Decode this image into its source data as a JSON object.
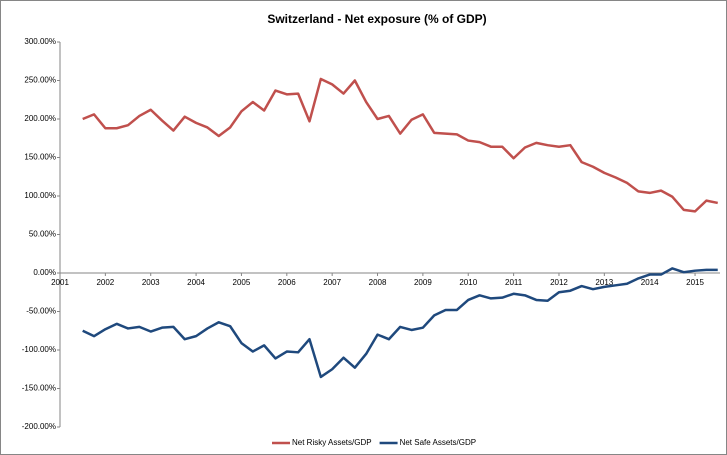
{
  "chart_data": {
    "type": "line",
    "title": "Switzerland - Net exposure (% of GDP)",
    "x": [
      2001.5,
      2001.75,
      2002,
      2002.25,
      2002.5,
      2002.75,
      2003,
      2003.25,
      2003.5,
      2003.75,
      2004,
      2004.25,
      2004.5,
      2004.75,
      2005,
      2005.25,
      2005.5,
      2005.75,
      2006,
      2006.25,
      2006.5,
      2006.75,
      2007,
      2007.25,
      2007.5,
      2007.75,
      2008,
      2008.25,
      2008.5,
      2008.75,
      2009,
      2009.25,
      2009.5,
      2009.75,
      2010,
      2010.25,
      2010.5,
      2010.75,
      2011,
      2011.25,
      2011.5,
      2011.75,
      2012,
      2012.25,
      2012.5,
      2012.75,
      2013,
      2013.25,
      2013.5,
      2013.75,
      2014,
      2014.25,
      2014.5,
      2014.75,
      2015,
      2015.25,
      2015.5
    ],
    "series": [
      {
        "name": "Net Risky Assets/GDP",
        "color": "#c0504d",
        "values": [
          200,
          206,
          188,
          188,
          192,
          204,
          212,
          198,
          185,
          203,
          195,
          189,
          178,
          189,
          210,
          222,
          211,
          237,
          232,
          233,
          197,
          252,
          245,
          233,
          250,
          222,
          200,
          204,
          181,
          199,
          206,
          182,
          181,
          180,
          172,
          170,
          164,
          164,
          149,
          163,
          169,
          166,
          164,
          166,
          144,
          138,
          130,
          124,
          117,
          106,
          104,
          107,
          99,
          82,
          80,
          94,
          91
        ]
      },
      {
        "name": "Net Safe Assets/GDP",
        "color": "#1f497d",
        "values": [
          -75,
          -82,
          -73,
          -66,
          -72,
          -70,
          -76,
          -71,
          -70,
          -86,
          -82,
          -72,
          -64,
          -69,
          -91,
          -102,
          -94,
          -111,
          -102,
          -103,
          -86,
          -135,
          -125,
          -110,
          -123,
          -105,
          -80,
          -86,
          -70,
          -74,
          -71,
          -55,
          -48,
          -48,
          -35,
          -29,
          -33,
          -32,
          -27,
          -29,
          -35,
          -36,
          -25,
          -23,
          -17,
          -21,
          -18,
          -16,
          -14,
          -7,
          -2,
          -2,
          6,
          1,
          3,
          4,
          4
        ]
      }
    ],
    "xlim": [
      2001,
      2015.55
    ],
    "xticks": [
      2001,
      2002,
      2003,
      2004,
      2005,
      2006,
      2007,
      2008,
      2009,
      2010,
      2011,
      2012,
      2013,
      2014,
      2015
    ],
    "ylim": [
      -200,
      300
    ],
    "yticks": [
      {
        "value": 300,
        "label": "300.00%"
      },
      {
        "value": 250,
        "label": "250.00%"
      },
      {
        "value": 200,
        "label": "200.00%"
      },
      {
        "value": 150,
        "label": "150.00%"
      },
      {
        "value": 100,
        "label": "100.00%"
      },
      {
        "value": 50,
        "label": "50.00%"
      },
      {
        "value": 0,
        "label": "0.00%"
      },
      {
        "value": -50,
        "label": "-50.00%"
      },
      {
        "value": -100,
        "label": "-100.00%"
      },
      {
        "value": -150,
        "label": "-150.00%"
      },
      {
        "value": -200,
        "label": "-200.00%"
      }
    ],
    "grid": false,
    "legend": "bottom"
  }
}
